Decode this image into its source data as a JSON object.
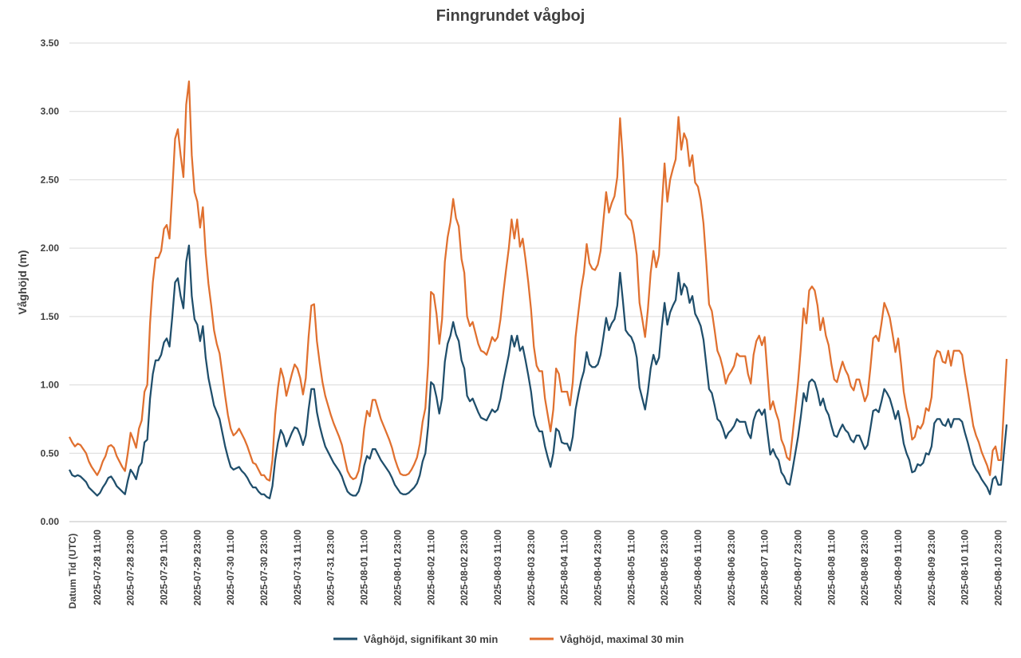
{
  "chart_data": {
    "type": "line",
    "title": "Finngrundet vågboj",
    "xlabel": "Datum Tid (UTC)",
    "ylabel": "Våghöjd (m)",
    "ylim": [
      0,
      3.5
    ],
    "yticks": [
      "0.00",
      "0.50",
      "1.00",
      "1.50",
      "2.00",
      "2.50",
      "3.00",
      "3.50"
    ],
    "x_start_hours_before_first_label": 10,
    "point_interval_hours": 1,
    "tick_labels": [
      "2025-07-28 11:00",
      "2025-07-28 23:00",
      "2025-07-29 11:00",
      "2025-07-29 23:00",
      "2025-07-30 11:00",
      "2025-07-30 23:00",
      "2025-07-31 11:00",
      "2025-07-31 23:00",
      "2025-08-01 11:00",
      "2025-08-01 23:00",
      "2025-08-02 11:00",
      "2025-08-02 23:00",
      "2025-08-03 11:00",
      "2025-08-03 23:00",
      "2025-08-04 11:00",
      "2025-08-04 23:00",
      "2025-08-05 11:00",
      "2025-08-05 23:00",
      "2025-08-06 11:00",
      "2025-08-06 23:00",
      "2025-08-07 11:00",
      "2025-08-07 23:00",
      "2025-08-08 11:00",
      "2025-08-08 23:00",
      "2025-08-09 11:00",
      "2025-08-09 23:00",
      "2025-08-10 11:00",
      "2025-08-10 23:00"
    ],
    "legend_position": "bottom",
    "grid": true,
    "series": [
      {
        "name": "Våghöjd, signifikant 30 min",
        "color": "#1F4E6B",
        "values": [
          0.38,
          0.34,
          0.33,
          0.34,
          0.33,
          0.31,
          0.29,
          0.25,
          0.23,
          0.21,
          0.19,
          0.21,
          0.25,
          0.28,
          0.32,
          0.33,
          0.3,
          0.26,
          0.24,
          0.22,
          0.2,
          0.3,
          0.38,
          0.35,
          0.31,
          0.4,
          0.43,
          0.58,
          0.6,
          0.9,
          1.08,
          1.18,
          1.18,
          1.22,
          1.31,
          1.34,
          1.28,
          1.5,
          1.75,
          1.78,
          1.65,
          1.56,
          1.9,
          2.02,
          1.65,
          1.48,
          1.44,
          1.32,
          1.43,
          1.2,
          1.05,
          0.95,
          0.85,
          0.8,
          0.75,
          0.65,
          0.55,
          0.47,
          0.4,
          0.38,
          0.39,
          0.4,
          0.37,
          0.35,
          0.32,
          0.28,
          0.25,
          0.25,
          0.22,
          0.2,
          0.2,
          0.18,
          0.17,
          0.26,
          0.45,
          0.58,
          0.67,
          0.63,
          0.55,
          0.6,
          0.65,
          0.69,
          0.68,
          0.63,
          0.56,
          0.63,
          0.82,
          0.97,
          0.97,
          0.8,
          0.7,
          0.62,
          0.55,
          0.51,
          0.47,
          0.43,
          0.4,
          0.37,
          0.33,
          0.27,
          0.22,
          0.2,
          0.19,
          0.19,
          0.22,
          0.29,
          0.41,
          0.48,
          0.46,
          0.53,
          0.53,
          0.49,
          0.45,
          0.42,
          0.39,
          0.36,
          0.32,
          0.27,
          0.24,
          0.21,
          0.2,
          0.2,
          0.21,
          0.23,
          0.25,
          0.28,
          0.34,
          0.44,
          0.5,
          0.7,
          1.02,
          1.0,
          0.91,
          0.79,
          0.9,
          1.17,
          1.3,
          1.36,
          1.46,
          1.37,
          1.32,
          1.18,
          1.12,
          0.92,
          0.88,
          0.9,
          0.85,
          0.8,
          0.76,
          0.75,
          0.74,
          0.78,
          0.82,
          0.8,
          0.82,
          0.9,
          1.02,
          1.12,
          1.22,
          1.36,
          1.28,
          1.36,
          1.25,
          1.28,
          1.18,
          1.07,
          0.95,
          0.78,
          0.7,
          0.66,
          0.66,
          0.55,
          0.47,
          0.4,
          0.5,
          0.68,
          0.66,
          0.58,
          0.57,
          0.57,
          0.52,
          0.62,
          0.82,
          0.93,
          1.03,
          1.1,
          1.24,
          1.15,
          1.13,
          1.13,
          1.15,
          1.22,
          1.35,
          1.49,
          1.4,
          1.45,
          1.48,
          1.58,
          1.82,
          1.62,
          1.4,
          1.37,
          1.35,
          1.3,
          1.2,
          0.98,
          0.9,
          0.82,
          0.95,
          1.12,
          1.22,
          1.15,
          1.2,
          1.42,
          1.6,
          1.44,
          1.53,
          1.58,
          1.62,
          1.82,
          1.66,
          1.74,
          1.71,
          1.6,
          1.65,
          1.52,
          1.48,
          1.43,
          1.33,
          1.15,
          0.97,
          0.94,
          0.85,
          0.75,
          0.73,
          0.68,
          0.61,
          0.65,
          0.67,
          0.7,
          0.75,
          0.73,
          0.73,
          0.73,
          0.65,
          0.61,
          0.74,
          0.8,
          0.82,
          0.78,
          0.82,
          0.65,
          0.49,
          0.53,
          0.48,
          0.45,
          0.36,
          0.33,
          0.28,
          0.27,
          0.38,
          0.5,
          0.62,
          0.77,
          0.94,
          0.88,
          1.02,
          1.04,
          1.02,
          0.95,
          0.85,
          0.9,
          0.82,
          0.78,
          0.7,
          0.63,
          0.62,
          0.67,
          0.71,
          0.67,
          0.65,
          0.6,
          0.58,
          0.63,
          0.63,
          0.58,
          0.53,
          0.56,
          0.68,
          0.81,
          0.82,
          0.8,
          0.88,
          0.97,
          0.94,
          0.9,
          0.83,
          0.75,
          0.81,
          0.7,
          0.57,
          0.5,
          0.45,
          0.36,
          0.37,
          0.42,
          0.41,
          0.43,
          0.5,
          0.49,
          0.55,
          0.72,
          0.75,
          0.75,
          0.71,
          0.7,
          0.75,
          0.69,
          0.75,
          0.75,
          0.75,
          0.73,
          0.65,
          0.58,
          0.5,
          0.42,
          0.38,
          0.35,
          0.31,
          0.28,
          0.25,
          0.2,
          0.31,
          0.33,
          0.27,
          0.27,
          0.5,
          0.71
        ]
      },
      {
        "name": "Våghöjd, maximal 30 min",
        "color": "#E0702F",
        "values": [
          0.62,
          0.58,
          0.55,
          0.57,
          0.56,
          0.53,
          0.5,
          0.44,
          0.4,
          0.37,
          0.34,
          0.38,
          0.44,
          0.48,
          0.55,
          0.56,
          0.54,
          0.48,
          0.44,
          0.4,
          0.37,
          0.5,
          0.65,
          0.6,
          0.54,
          0.68,
          0.74,
          0.95,
          1.0,
          1.45,
          1.75,
          1.93,
          1.93,
          1.98,
          2.14,
          2.17,
          2.07,
          2.42,
          2.8,
          2.87,
          2.68,
          2.52,
          3.05,
          3.22,
          2.68,
          2.41,
          2.34,
          2.15,
          2.3,
          1.96,
          1.74,
          1.58,
          1.4,
          1.3,
          1.23,
          1.08,
          0.92,
          0.78,
          0.68,
          0.63,
          0.65,
          0.68,
          0.64,
          0.6,
          0.55,
          0.49,
          0.43,
          0.42,
          0.38,
          0.34,
          0.34,
          0.31,
          0.3,
          0.45,
          0.78,
          0.98,
          1.12,
          1.05,
          0.92,
          1.0,
          1.08,
          1.15,
          1.12,
          1.05,
          0.93,
          1.05,
          1.35,
          1.58,
          1.59,
          1.32,
          1.16,
          1.02,
          0.92,
          0.85,
          0.78,
          0.72,
          0.67,
          0.62,
          0.56,
          0.46,
          0.37,
          0.33,
          0.31,
          0.32,
          0.37,
          0.48,
          0.68,
          0.81,
          0.77,
          0.89,
          0.89,
          0.82,
          0.75,
          0.7,
          0.65,
          0.6,
          0.54,
          0.46,
          0.4,
          0.35,
          0.34,
          0.34,
          0.35,
          0.38,
          0.42,
          0.47,
          0.57,
          0.73,
          0.83,
          1.15,
          1.68,
          1.66,
          1.52,
          1.3,
          1.48,
          1.9,
          2.08,
          2.19,
          2.36,
          2.22,
          2.16,
          1.92,
          1.82,
          1.5,
          1.43,
          1.46,
          1.38,
          1.3,
          1.25,
          1.24,
          1.22,
          1.28,
          1.35,
          1.32,
          1.35,
          1.48,
          1.67,
          1.84,
          2.0,
          2.21,
          2.07,
          2.21,
          2.01,
          2.07,
          1.92,
          1.75,
          1.55,
          1.28,
          1.14,
          1.1,
          1.1,
          0.9,
          0.78,
          0.66,
          0.82,
          1.12,
          1.08,
          0.95,
          0.95,
          0.95,
          0.85,
          1.02,
          1.35,
          1.53,
          1.7,
          1.82,
          2.03,
          1.89,
          1.85,
          1.84,
          1.88,
          1.98,
          2.2,
          2.41,
          2.26,
          2.33,
          2.38,
          2.52,
          2.95,
          2.65,
          2.25,
          2.22,
          2.2,
          2.1,
          1.95,
          1.6,
          1.48,
          1.35,
          1.55,
          1.82,
          1.98,
          1.86,
          1.95,
          2.3,
          2.62,
          2.34,
          2.5,
          2.58,
          2.65,
          2.96,
          2.72,
          2.84,
          2.79,
          2.6,
          2.68,
          2.48,
          2.45,
          2.35,
          2.18,
          1.9,
          1.59,
          1.54,
          1.4,
          1.25,
          1.2,
          1.12,
          1.01,
          1.07,
          1.1,
          1.14,
          1.23,
          1.21,
          1.21,
          1.21,
          1.08,
          1.01,
          1.22,
          1.32,
          1.36,
          1.29,
          1.35,
          1.08,
          0.82,
          0.88,
          0.8,
          0.74,
          0.6,
          0.55,
          0.47,
          0.45,
          0.63,
          0.82,
          1.02,
          1.27,
          1.56,
          1.45,
          1.69,
          1.72,
          1.69,
          1.58,
          1.4,
          1.49,
          1.36,
          1.29,
          1.15,
          1.04,
          1.02,
          1.1,
          1.17,
          1.11,
          1.07,
          0.99,
          0.96,
          1.04,
          1.04,
          0.96,
          0.88,
          0.93,
          1.12,
          1.34,
          1.36,
          1.32,
          1.45,
          1.6,
          1.55,
          1.49,
          1.37,
          1.24,
          1.34,
          1.16,
          0.95,
          0.83,
          0.75,
          0.6,
          0.62,
          0.7,
          0.68,
          0.72,
          0.83,
          0.81,
          0.91,
          1.19,
          1.25,
          1.24,
          1.17,
          1.16,
          1.25,
          1.14,
          1.25,
          1.25,
          1.25,
          1.22,
          1.08,
          0.96,
          0.83,
          0.7,
          0.63,
          0.58,
          0.51,
          0.46,
          0.41,
          0.34,
          0.52,
          0.55,
          0.45,
          0.45,
          0.83,
          1.19
        ]
      }
    ]
  }
}
